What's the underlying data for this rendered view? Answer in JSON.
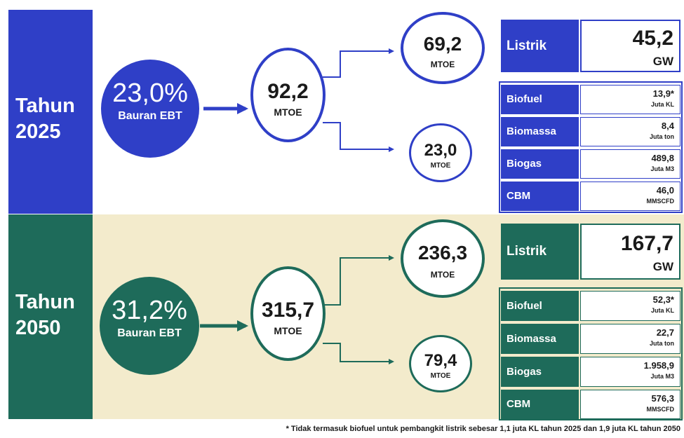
{
  "colors": {
    "blue": "#2f3fc7",
    "green": "#1e6b5a",
    "cream": "#f3ebcc"
  },
  "y2025": {
    "tahun": "Tahun",
    "year": "2025",
    "ebt_pct": "23,0%",
    "ebt_label": "Bauran EBT",
    "total_value": "92,2",
    "total_unit": "MTOE",
    "top_value": "69,2",
    "top_unit": "MTOE",
    "bottom_value": "23,0",
    "bottom_unit": "MTOE",
    "listrik_label": "Listrik",
    "listrik_value": "45,2",
    "listrik_unit": "GW",
    "items": [
      {
        "label": "Biofuel",
        "value": "13,9*",
        "unit": "Juta KL"
      },
      {
        "label": "Biomassa",
        "value": "8,4",
        "unit": "Juta ton"
      },
      {
        "label": "Biogas",
        "value": "489,8",
        "unit": "Juta M3"
      },
      {
        "label": "CBM",
        "value": "46,0",
        "unit": "MMSCFD"
      }
    ]
  },
  "y2050": {
    "tahun": "Tahun",
    "year": "2050",
    "ebt_pct": "31,2%",
    "ebt_label": "Bauran EBT",
    "total_value": "315,7",
    "total_unit": "MTOE",
    "top_value": "236,3",
    "top_unit": "MTOE",
    "bottom_value": "79,4",
    "bottom_unit": "MTOE",
    "listrik_label": "Listrik",
    "listrik_value": "167,7",
    "listrik_unit": "GW",
    "items": [
      {
        "label": "Biofuel",
        "value": "52,3*",
        "unit": "Juta KL"
      },
      {
        "label": "Biomassa",
        "value": "22,7",
        "unit": "Juta ton"
      },
      {
        "label": "Biogas",
        "value": "1.958,9",
        "unit": "Juta M3"
      },
      {
        "label": "CBM",
        "value": "576,3",
        "unit": "MMSCFD"
      }
    ]
  },
  "footnote": "* Tidak termasuk biofuel untuk pembangkit listrik sebesar 1,1 juta KL tahun 2025 dan 1,9 juta KL tahun 2050"
}
